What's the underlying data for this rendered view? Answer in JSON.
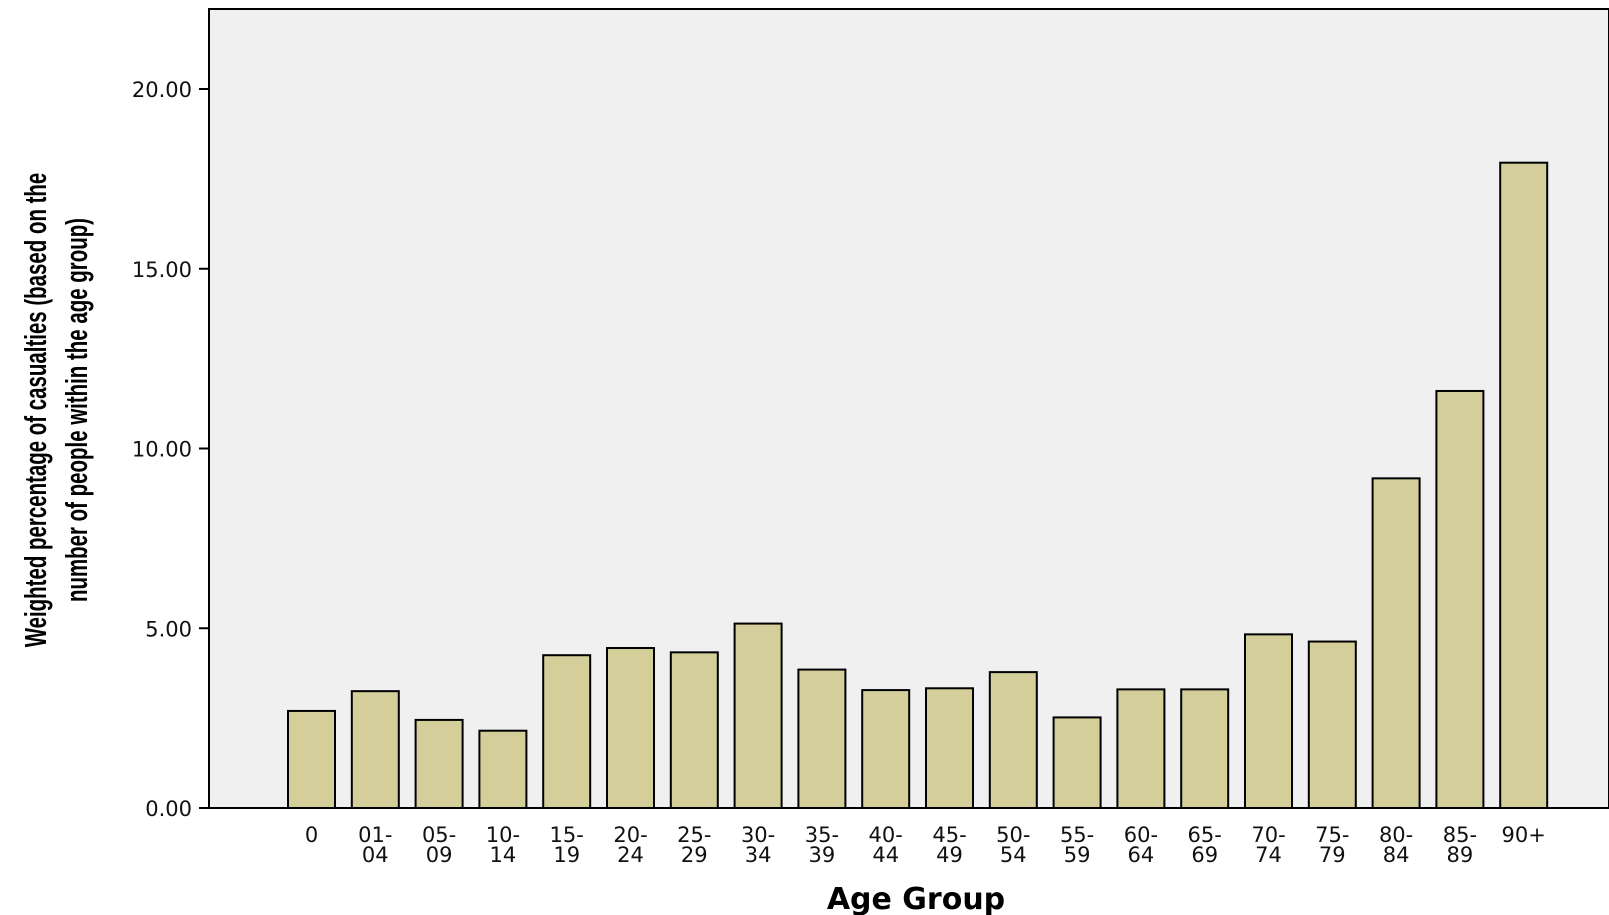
{
  "chart_data": {
    "type": "bar",
    "title": "",
    "xlabel": "Age Group",
    "ylabel_lines": [
      "Weighted percentage of casualties (based on the",
      "number of people within the age group)"
    ],
    "categories": [
      [
        "0"
      ],
      [
        "01-",
        "04"
      ],
      [
        "05-",
        "09"
      ],
      [
        "10-",
        "14"
      ],
      [
        "15-",
        "19"
      ],
      [
        "20-",
        "24"
      ],
      [
        "25-",
        "29"
      ],
      [
        "30-",
        "34"
      ],
      [
        "35-",
        "39"
      ],
      [
        "40-",
        "44"
      ],
      [
        "45-",
        "49"
      ],
      [
        "50-",
        "54"
      ],
      [
        "55-",
        "59"
      ],
      [
        "60-",
        "64"
      ],
      [
        "65-",
        "69"
      ],
      [
        "70-",
        "74"
      ],
      [
        "75-",
        "79"
      ],
      [
        "80-",
        "84"
      ],
      [
        "85-",
        "89"
      ],
      [
        "90+"
      ]
    ],
    "values": [
      2.7,
      3.25,
      2.45,
      2.15,
      4.25,
      4.45,
      4.33,
      5.13,
      3.85,
      3.28,
      3.33,
      3.78,
      2.52,
      3.3,
      3.3,
      4.83,
      4.63,
      9.17,
      11.6,
      17.95
    ],
    "ylim": [
      0,
      22.2
    ],
    "yticks": [
      {
        "value": 0,
        "label": "0.00"
      },
      {
        "value": 5,
        "label": "5.00"
      },
      {
        "value": 10,
        "label": "10.00"
      },
      {
        "value": 15,
        "label": "15.00"
      },
      {
        "value": 20,
        "label": "20.00"
      }
    ],
    "grid": false,
    "colors": {
      "plot_background": "#f0f0f0",
      "bar_fill": "#d3ce9a",
      "bar_stroke": "#000000"
    }
  }
}
